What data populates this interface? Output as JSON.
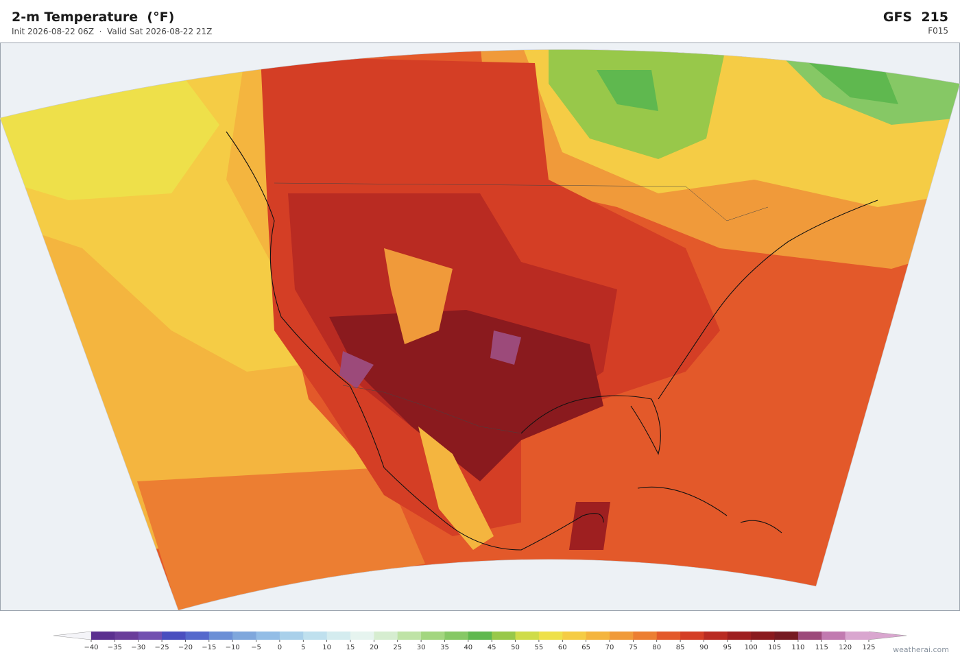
{
  "header": {
    "title": "2-m Temperature  (°F)",
    "subtitle": "Init 2026-08-22 06Z  ·  Valid Sat 2026-08-22 21Z",
    "model": "GFS  215",
    "forecast_hour": "F015"
  },
  "colorbar": {
    "ticks": [
      {
        "value": -40,
        "label": "−40"
      },
      {
        "value": -35,
        "label": "−35"
      },
      {
        "value": -30,
        "label": "−30"
      },
      {
        "value": -25,
        "label": "−25"
      },
      {
        "value": -20,
        "label": "−20"
      },
      {
        "value": -15,
        "label": "−15"
      },
      {
        "value": -10,
        "label": "−10"
      },
      {
        "value": -5,
        "label": "−5"
      },
      0,
      5,
      10,
      15,
      20,
      25,
      30,
      35,
      40,
      45,
      50,
      55,
      60,
      65,
      70,
      75,
      80,
      85,
      90,
      95,
      100,
      105,
      110,
      115,
      120,
      125
    ],
    "colors": [
      "#5b2f8f",
      "#6a3d9a",
      "#7250b0",
      "#4a4fbf",
      "#5569cc",
      "#6b8fd6",
      "#7fa7dc",
      "#93bde6",
      "#a9d0ea",
      "#bfe0ee",
      "#d4ecef",
      "#e6f4ef",
      "#d6edd0",
      "#bfe3a6",
      "#a3d67f",
      "#86c865",
      "#5fb84f",
      "#98c84a",
      "#cfdc4a",
      "#eee04a",
      "#f5cc45",
      "#f4b53f",
      "#f09a3a",
      "#ec7e32",
      "#e3592a",
      "#d43e25",
      "#b92b22",
      "#9e1f20",
      "#8a1a1e",
      "#761a22",
      "#9c4a7a",
      "#c17ab0",
      "#d9a6cf"
    ],
    "under_color": "#f4f4f8",
    "over_color": "#d9a6cf"
  },
  "footer": {
    "attribution": "weatherai.com"
  }
}
